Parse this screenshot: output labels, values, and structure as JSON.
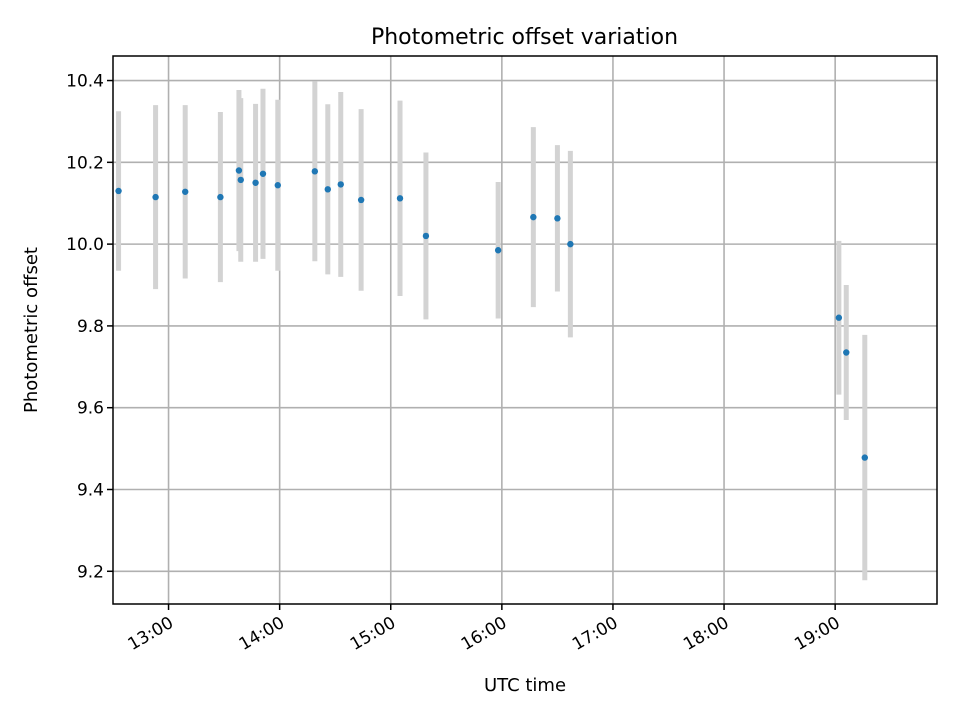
{
  "chart_data": {
    "type": "scatter",
    "title": "Photometric offset variation",
    "xlabel": "UTC time",
    "ylabel": "Photometric offset",
    "xlim": [
      "12:30",
      "19:55"
    ],
    "ylim": [
      9.12,
      10.46
    ],
    "x_ticks": [
      "13:00",
      "14:00",
      "15:00",
      "16:00",
      "17:00",
      "18:00",
      "19:00"
    ],
    "y_ticks": [
      "9.2",
      "9.4",
      "9.6",
      "9.8",
      "10.0",
      "10.2",
      "10.4"
    ],
    "grid": true,
    "points": [
      {
        "x": "12:33",
        "y": 10.13,
        "err": 0.195
      },
      {
        "x": "12:53",
        "y": 10.115,
        "err": 0.225
      },
      {
        "x": "13:09",
        "y": 10.128,
        "err": 0.212
      },
      {
        "x": "13:28",
        "y": 10.115,
        "err": 0.208
      },
      {
        "x": "13:38",
        "y": 10.18,
        "err": 0.197
      },
      {
        "x": "13:39",
        "y": 10.157,
        "err": 0.2
      },
      {
        "x": "13:47",
        "y": 10.15,
        "err": 0.193
      },
      {
        "x": "13:51",
        "y": 10.172,
        "err": 0.208
      },
      {
        "x": "13:59",
        "y": 10.144,
        "err": 0.209
      },
      {
        "x": "14:19",
        "y": 10.178,
        "err": 0.22
      },
      {
        "x": "14:26",
        "y": 10.134,
        "err": 0.208
      },
      {
        "x": "14:33",
        "y": 10.146,
        "err": 0.226
      },
      {
        "x": "14:44",
        "y": 10.108,
        "err": 0.222
      },
      {
        "x": "15:05",
        "y": 10.112,
        "err": 0.239
      },
      {
        "x": "15:19",
        "y": 10.02,
        "err": 0.204
      },
      {
        "x": "15:58",
        "y": 9.985,
        "err": 0.167
      },
      {
        "x": "16:17",
        "y": 10.066,
        "err": 0.22
      },
      {
        "x": "16:30",
        "y": 10.063,
        "err": 0.179
      },
      {
        "x": "16:37",
        "y": 10.0,
        "err": 0.228
      },
      {
        "x": "19:02",
        "y": 9.82,
        "err": 0.188
      },
      {
        "x": "19:06",
        "y": 9.735,
        "err": 0.165
      },
      {
        "x": "19:16",
        "y": 9.478,
        "err": 0.3
      }
    ]
  },
  "colors": {
    "marker": "#1f77b4",
    "errorbar": "#d3d3d3",
    "grid": "#b0b0b0"
  }
}
